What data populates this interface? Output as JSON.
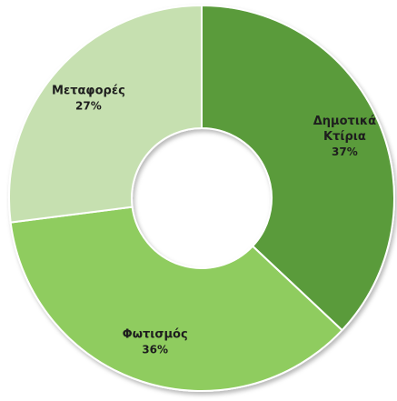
{
  "chart_data": {
    "type": "pie",
    "variant": "donut",
    "title": "",
    "start_angle_deg": 0,
    "direction": "clockwise",
    "slices": [
      {
        "name_lines": [
          "Δημοτικά",
          "Κτίρια"
        ],
        "value": 37,
        "percent_label": "37%",
        "color": "#5a9b3a"
      },
      {
        "name_lines": [
          "Φωτισμός"
        ],
        "value": 36,
        "percent_label": "36%",
        "color": "#8fcc5e"
      },
      {
        "name_lines": [
          "Μεταφορές"
        ],
        "value": 27,
        "percent_label": "27%",
        "color": "#c6e0b0"
      }
    ],
    "legend": "none"
  }
}
